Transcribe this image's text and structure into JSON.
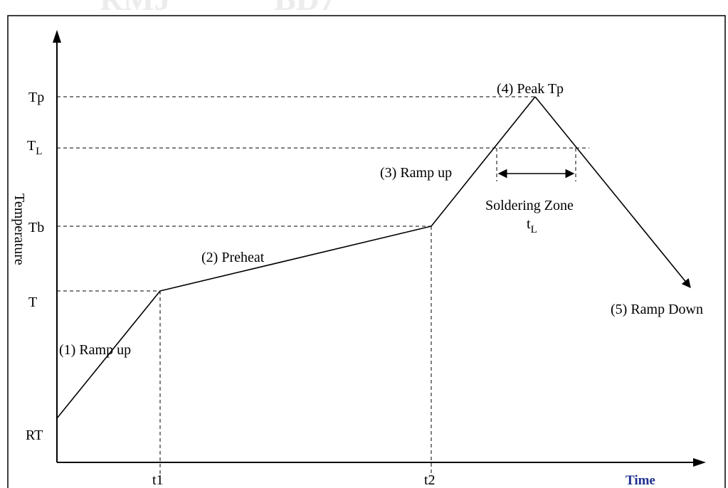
{
  "watermark": {
    "left": "RMJ",
    "right": "BD7"
  },
  "axes": {
    "ylabel": "Temperature",
    "xlabel": "Time",
    "xlabel_color": "#1f2f8f"
  },
  "y_levels": {
    "tp": "Tp",
    "tl_main": "T",
    "tl_sub": "L",
    "tb": "Tb",
    "t": "T",
    "rt": "RT"
  },
  "x_ticks": {
    "t1": "t1",
    "t2": "t2"
  },
  "phases": {
    "ramp_up_1": "(1) Ramp up",
    "preheat": "(2) Preheat",
    "ramp_up_3": "(3) Ramp up",
    "peak": "(4) Peak Tp",
    "ramp_down": "(5) Ramp Down"
  },
  "soldering_zone": {
    "label": "Soldering Zone",
    "sub_main": "t",
    "sub_sub": "L"
  }
}
